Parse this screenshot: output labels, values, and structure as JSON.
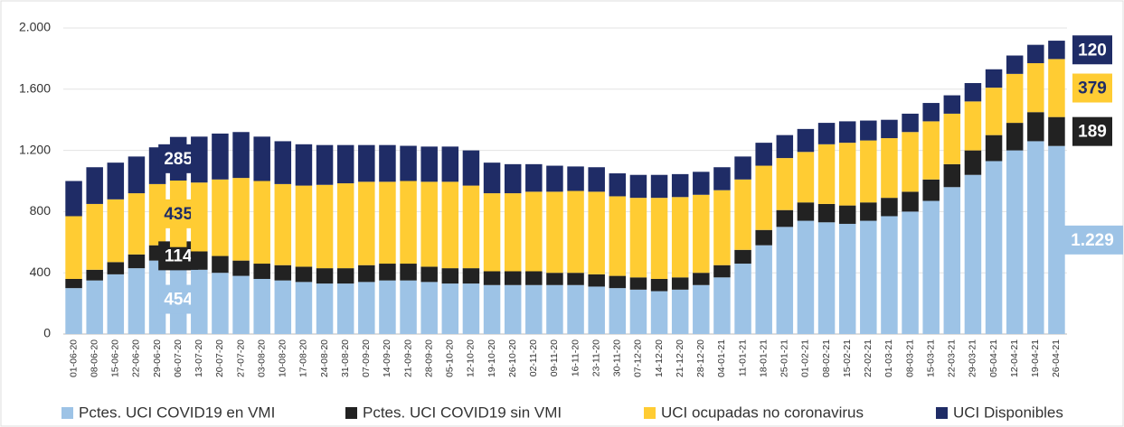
{
  "chart_data": {
    "type": "stacked_bar",
    "categories": [
      "01-06-20",
      "08-06-20",
      "15-06-20",
      "22-06-20",
      "29-06-20",
      "06-07-20",
      "13-07-20",
      "20-07-20",
      "27-07-20",
      "03-08-20",
      "10-08-20",
      "17-08-20",
      "24-08-20",
      "31-08-20",
      "07-09-20",
      "14-09-20",
      "21-09-20",
      "28-09-20",
      "05-10-20",
      "12-10-20",
      "19-10-20",
      "26-10-20",
      "02-11-20",
      "09-11-20",
      "16-11-20",
      "23-11-20",
      "30-11-20",
      "07-12-20",
      "14-12-20",
      "21-12-20",
      "28-12-20",
      "04-01-21",
      "11-01-21",
      "18-01-21",
      "25-01-21",
      "01-02-21",
      "08-02-21",
      "15-02-21",
      "22-02-21",
      "01-03-21",
      "08-03-21",
      "15-03-21",
      "22-03-21",
      "29-03-21",
      "05-04-21",
      "12-04-21",
      "19-04-21",
      "26-04-21"
    ],
    "series": [
      {
        "name": "Pctes. UCI COVID19 en VMI",
        "color": "#9dc3e6",
        "values": [
          300,
          350,
          390,
          430,
          480,
          454,
          420,
          400,
          380,
          360,
          350,
          340,
          330,
          330,
          340,
          350,
          350,
          340,
          330,
          330,
          320,
          320,
          320,
          320,
          320,
          310,
          300,
          290,
          280,
          290,
          320,
          370,
          460,
          580,
          700,
          740,
          730,
          720,
          740,
          770,
          800,
          870,
          960,
          1040,
          1130,
          1200,
          1260,
          1229
        ],
        "value_labels": [
          null,
          null,
          null,
          null,
          null,
          "454",
          null,
          null,
          null,
          null,
          null,
          null,
          null,
          null,
          null,
          null,
          null,
          null,
          null,
          null,
          null,
          null,
          null,
          null,
          null,
          null,
          null,
          null,
          null,
          null,
          null,
          null,
          null,
          null,
          null,
          null,
          null,
          null,
          null,
          null,
          null,
          null,
          null,
          null,
          null,
          null,
          null,
          "1.229"
        ]
      },
      {
        "name": "Pctes. UCI COVID19 sin VMI",
        "color": "#222222",
        "values": [
          60,
          70,
          80,
          90,
          100,
          114,
          120,
          110,
          100,
          100,
          100,
          100,
          100,
          100,
          110,
          110,
          110,
          100,
          100,
          100,
          90,
          90,
          90,
          80,
          80,
          80,
          80,
          80,
          80,
          80,
          80,
          80,
          90,
          100,
          110,
          120,
          120,
          120,
          120,
          120,
          130,
          140,
          150,
          160,
          170,
          180,
          190,
          189
        ],
        "value_labels": [
          null,
          null,
          null,
          null,
          null,
          "114",
          null,
          null,
          null,
          null,
          null,
          null,
          null,
          null,
          null,
          null,
          null,
          null,
          null,
          null,
          null,
          null,
          null,
          null,
          null,
          null,
          null,
          null,
          null,
          null,
          null,
          null,
          null,
          null,
          null,
          null,
          null,
          null,
          null,
          null,
          null,
          null,
          null,
          null,
          null,
          null,
          null,
          "189"
        ]
      },
      {
        "name": "UCI ocupadas no coronavirus",
        "color": "#ffcc33",
        "values": [
          410,
          430,
          410,
          400,
          400,
          435,
          450,
          500,
          540,
          540,
          530,
          530,
          545,
          555,
          545,
          535,
          540,
          555,
          565,
          540,
          510,
          510,
          520,
          530,
          535,
          540,
          520,
          520,
          530,
          525,
          510,
          490,
          460,
          420,
          340,
          330,
          390,
          410,
          405,
          390,
          390,
          380,
          330,
          320,
          310,
          320,
          320,
          379
        ],
        "value_labels": [
          null,
          null,
          null,
          null,
          null,
          "435",
          null,
          null,
          null,
          null,
          null,
          null,
          null,
          null,
          null,
          null,
          null,
          null,
          null,
          null,
          null,
          null,
          null,
          null,
          null,
          null,
          null,
          null,
          null,
          null,
          null,
          null,
          null,
          null,
          null,
          null,
          null,
          null,
          null,
          null,
          null,
          null,
          null,
          null,
          null,
          null,
          null,
          "379"
        ]
      },
      {
        "name": "UCI Disponibles",
        "color": "#1f2c66",
        "values": [
          230,
          240,
          240,
          240,
          240,
          285,
          300,
          300,
          300,
          290,
          280,
          270,
          260,
          250,
          240,
          240,
          230,
          230,
          230,
          230,
          200,
          190,
          180,
          170,
          160,
          160,
          150,
          150,
          150,
          150,
          150,
          150,
          150,
          150,
          150,
          150,
          140,
          140,
          130,
          120,
          120,
          120,
          120,
          120,
          120,
          120,
          120,
          120
        ],
        "value_labels": [
          null,
          null,
          null,
          null,
          null,
          "285",
          null,
          null,
          null,
          null,
          null,
          null,
          null,
          null,
          null,
          null,
          null,
          null,
          null,
          null,
          null,
          null,
          null,
          null,
          null,
          null,
          null,
          null,
          null,
          null,
          null,
          null,
          null,
          null,
          null,
          null,
          null,
          null,
          null,
          null,
          null,
          null,
          null,
          null,
          null,
          null,
          null,
          "120"
        ]
      }
    ],
    "ylim": [
      0,
      2000
    ],
    "yticks": [
      0,
      {
        "value": 400,
        "label": "400"
      },
      {
        "value": 800,
        "label": "800"
      },
      {
        "value": 1200,
        "label": "1.200"
      },
      {
        "value": 1600,
        "label": "1.600"
      },
      {
        "value": 2000,
        "label": "2.000"
      }
    ],
    "grid": true,
    "legend": "bottom"
  }
}
